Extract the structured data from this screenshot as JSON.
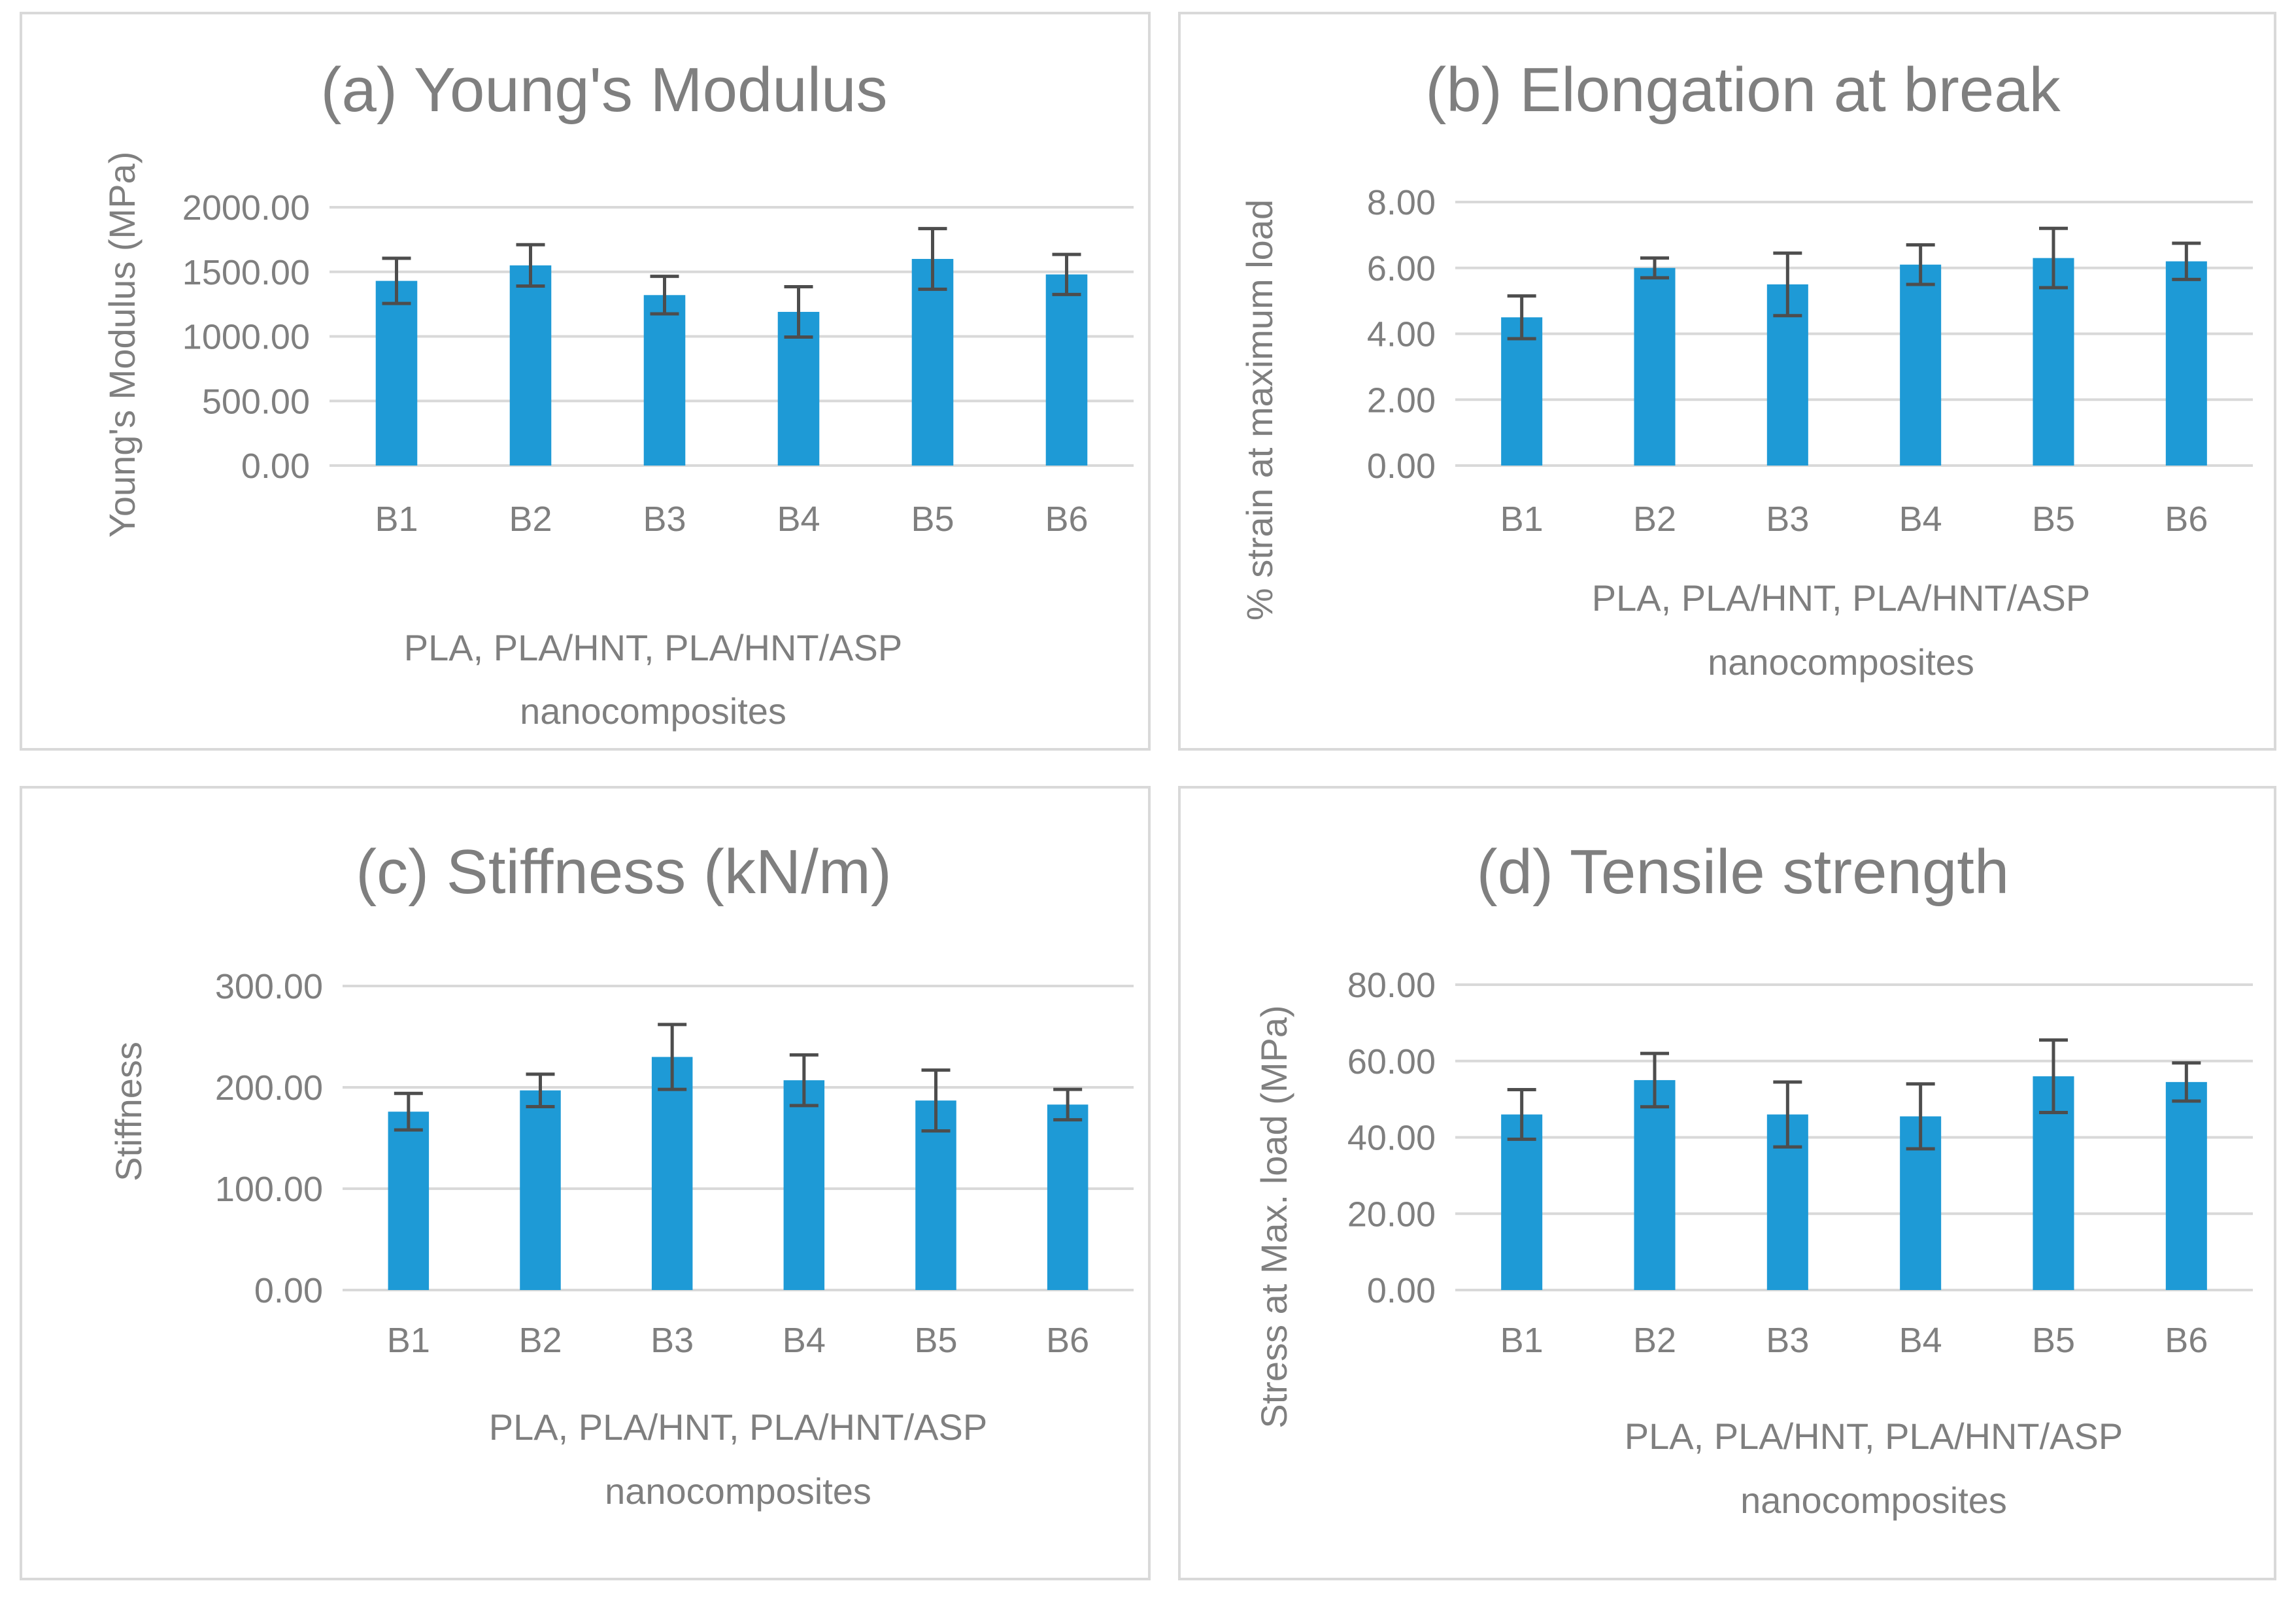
{
  "chart_data": [
    {
      "id": "a",
      "type": "bar",
      "title": "(a) Young's Modulus",
      "ylabel": "Young's Modulus (MPa)",
      "xlabel_lines": [
        "PLA, PLA/HNT, PLA/HNT/ASP",
        "nanocomposites"
      ],
      "categories": [
        "B1",
        "B2",
        "B3",
        "B4",
        "B5",
        "B6"
      ],
      "values": [
        1430,
        1550,
        1320,
        1190,
        1600,
        1480
      ],
      "errors": [
        175,
        160,
        145,
        195,
        235,
        155
      ],
      "ylim": [
        0,
        2000
      ],
      "yticks": [
        "0.00",
        "500.00",
        "1000.00",
        "1500.00",
        "2000.00"
      ],
      "grid": true,
      "color": "#1e9ad6"
    },
    {
      "id": "b",
      "type": "bar",
      "title": "(b) Elongation at break",
      "ylabel": "% strain at maximum load",
      "xlabel_lines": [
        "PLA, PLA/HNT, PLA/HNT/ASP",
        "nanocomposites"
      ],
      "categories": [
        "B1",
        "B2",
        "B3",
        "B4",
        "B5",
        "B6"
      ],
      "values": [
        4.5,
        6.0,
        5.5,
        6.1,
        6.3,
        6.2
      ],
      "errors": [
        0.65,
        0.3,
        0.95,
        0.6,
        0.9,
        0.55
      ],
      "ylim": [
        0,
        8
      ],
      "yticks": [
        "0.00",
        "2.00",
        "4.00",
        "6.00",
        "8.00"
      ],
      "grid": true,
      "color": "#1e9ad6"
    },
    {
      "id": "c",
      "type": "bar",
      "title": "(c) Stiffness (kN/m)",
      "ylabel": "Stiffness",
      "xlabel_lines": [
        "PLA, PLA/HNT, PLA/HNT/ASP",
        "nanocomposites"
      ],
      "categories": [
        "B1",
        "B2",
        "B3",
        "B4",
        "B5",
        "B6"
      ],
      "values": [
        176,
        197,
        230,
        207,
        187,
        183
      ],
      "errors": [
        18,
        16,
        32,
        25,
        30,
        15
      ],
      "ylim": [
        0,
        300
      ],
      "yticks": [
        "0.00",
        "100.00",
        "200.00",
        "300.00"
      ],
      "grid": true,
      "color": "#1e9ad6"
    },
    {
      "id": "d",
      "type": "bar",
      "title": "(d) Tensile strength",
      "ylabel": "Stress at Max. load (MPa)",
      "xlabel_lines": [
        "PLA, PLA/HNT, PLA/HNT/ASP",
        "nanocomposites"
      ],
      "categories": [
        "B1",
        "B2",
        "B3",
        "B4",
        "B5",
        "B6"
      ],
      "values": [
        46,
        55,
        46,
        45.5,
        56,
        54.5
      ],
      "errors": [
        6.5,
        7,
        8.5,
        8.5,
        9.5,
        5
      ],
      "ylim": [
        0,
        80
      ],
      "yticks": [
        "0.00",
        "20.00",
        "40.00",
        "60.00",
        "80.00"
      ],
      "grid": true,
      "color": "#1e9ad6"
    }
  ]
}
